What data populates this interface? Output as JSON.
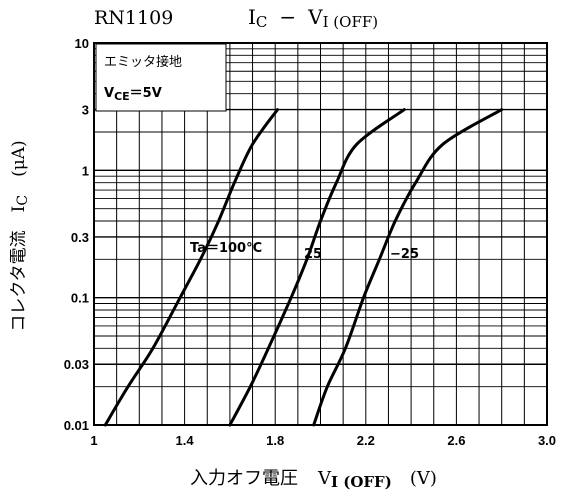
{
  "chart_data": {
    "type": "line",
    "device": "RN1109",
    "title": {
      "main": "I",
      "main_sub": "C",
      "dash": "−",
      "second": "V",
      "second_sub": "I (OFF)"
    },
    "xlabel": {
      "prefix": "入力オフ電圧",
      "var": "V",
      "var_sub": "I (OFF)",
      "unit": "(V)"
    },
    "ylabel": {
      "prefix": "コレクタ電流",
      "var": "I",
      "var_sub": "C",
      "unit": "(μA)"
    },
    "xlim": [
      1.0,
      3.0
    ],
    "ylim": [
      0.01,
      10
    ],
    "yscale": "log",
    "x_ticks": [
      1.0,
      1.4,
      1.8,
      2.2,
      2.6,
      3.0
    ],
    "x_tick_labels": [
      "1",
      "1.4",
      "1.8",
      "2.2",
      "2.6",
      "3.0"
    ],
    "y_ticks": [
      0.01,
      0.03,
      0.1,
      0.3,
      1,
      3,
      10
    ],
    "y_tick_labels": [
      "0.01",
      "0.03",
      "0.1",
      "0.3",
      "1",
      "3",
      "10"
    ],
    "grid": true,
    "conditions": {
      "line1": "エミッタ接地",
      "line2_var": "V",
      "line2_sub": "CE",
      "line2_value": "＝5V"
    },
    "series": [
      {
        "name": "Ta＝100°C",
        "x": [
          1.05,
          1.15,
          1.26,
          1.38,
          1.47,
          1.55,
          1.62,
          1.7,
          1.81
        ],
        "y": [
          0.01,
          0.02,
          0.04,
          0.1,
          0.2,
          0.4,
          0.8,
          1.6,
          3.0
        ]
      },
      {
        "name": "25",
        "x": [
          1.6,
          1.69,
          1.77,
          1.87,
          1.94,
          2.0,
          2.07,
          2.16,
          2.37
        ],
        "y": [
          0.01,
          0.02,
          0.04,
          0.1,
          0.2,
          0.4,
          0.8,
          1.6,
          3.0
        ]
      },
      {
        "name": "−25",
        "x": [
          1.97,
          2.03,
          2.11,
          2.19,
          2.26,
          2.33,
          2.42,
          2.54,
          2.8
        ],
        "y": [
          0.01,
          0.02,
          0.04,
          0.1,
          0.2,
          0.4,
          0.8,
          1.6,
          3.0
        ]
      }
    ]
  }
}
